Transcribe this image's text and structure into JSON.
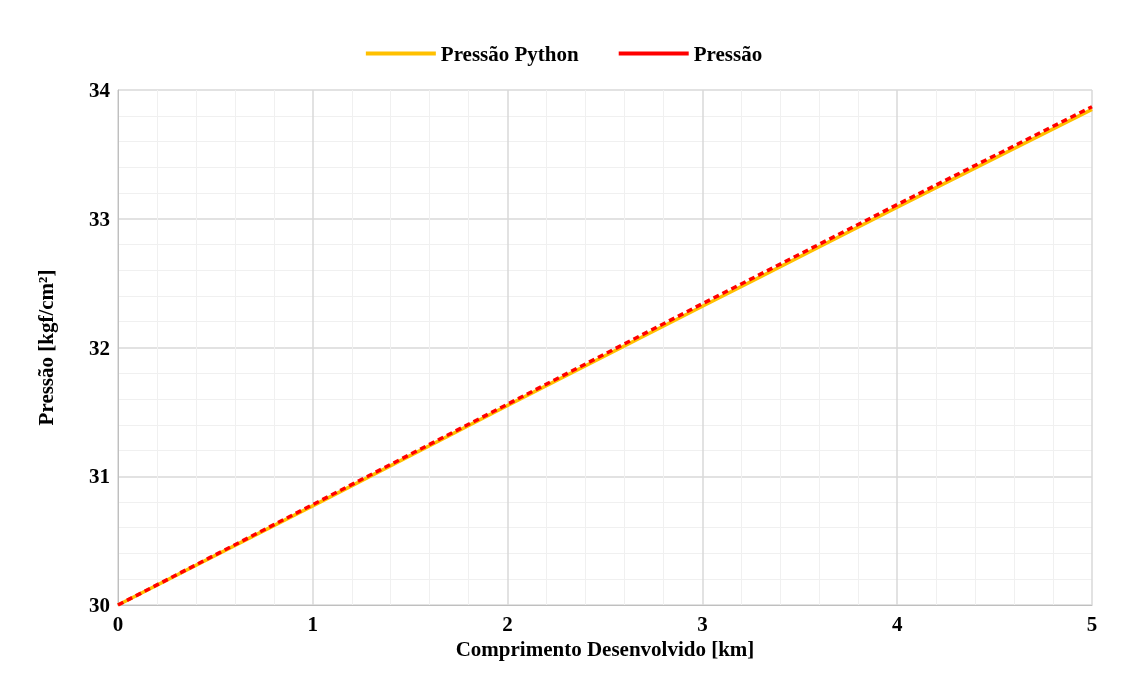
{
  "chart_data": {
    "type": "line",
    "xlabel": "Comprimento Desenvolvido [km]",
    "ylabel": "Pressão [kgf/cm²]",
    "x": [
      0,
      1,
      2,
      3,
      4,
      5
    ],
    "series": [
      {
        "name": "Pressão Python",
        "color": "#ffc000",
        "line_style": "solid",
        "values": [
          30,
          30.77,
          31.55,
          32.32,
          33.09,
          33.85
        ]
      },
      {
        "name": "Pressão",
        "color": "#ff0000",
        "line_style": "dashed",
        "values": [
          30,
          30.78,
          31.56,
          32.34,
          33.11,
          33.87
        ]
      }
    ],
    "xlim": [
      0,
      5
    ],
    "xticks": [
      0,
      1,
      2,
      3,
      4,
      5
    ],
    "ylim": [
      30,
      34
    ],
    "yticks": [
      30,
      31,
      32,
      33,
      34
    ],
    "grid": true,
    "legend": "top",
    "marker": "none"
  }
}
